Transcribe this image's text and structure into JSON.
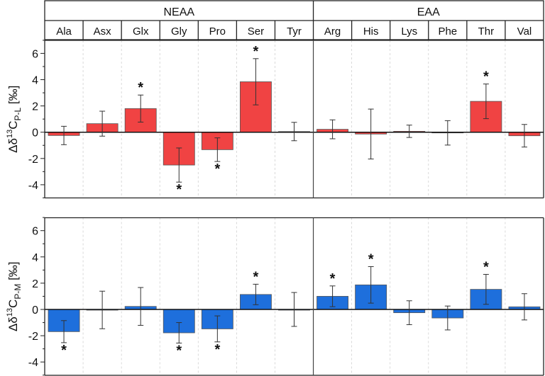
{
  "chart_data": [
    {
      "type": "bar",
      "panel": "top",
      "group_labels": [
        "NEAA",
        "EAA"
      ],
      "group_sizes": [
        7,
        6
      ],
      "categories": [
        "Ala",
        "Asx",
        "Glx",
        "Gly",
        "Pro",
        "Ser",
        "Tyr",
        "Arg",
        "His",
        "Lys",
        "Phe",
        "Thr",
        "Val"
      ],
      "values": [
        -0.25,
        0.65,
        1.8,
        -2.5,
        -1.33,
        3.84,
        0.05,
        0.22,
        -0.14,
        0.07,
        -0.05,
        2.35,
        -0.27
      ],
      "errors": [
        0.7,
        0.95,
        1.03,
        1.3,
        0.9,
        1.76,
        0.7,
        0.72,
        1.9,
        0.47,
        0.93,
        1.32,
        0.86
      ],
      "significant": [
        false,
        false,
        true,
        true,
        true,
        true,
        false,
        false,
        false,
        false,
        false,
        true,
        false
      ],
      "significance_mark": "*",
      "ylabel_main": "Δδ",
      "ylabel_sup": "13",
      "ylabel_c": "C",
      "ylabel_sub": "P-L",
      "ylabel_unit": " [‰]",
      "ylim": [
        -5,
        7
      ],
      "yticks": [
        -4,
        -2,
        0,
        2,
        4,
        6
      ],
      "color": "#f04343"
    },
    {
      "type": "bar",
      "panel": "bottom",
      "categories": [
        "Ala",
        "Asx",
        "Glx",
        "Gly",
        "Pro",
        "Ser",
        "Tyr",
        "Arg",
        "His",
        "Lys",
        "Phe",
        "Thr",
        "Val"
      ],
      "values": [
        -1.69,
        -0.04,
        0.23,
        -1.78,
        -1.48,
        1.14,
        0.0,
        1.0,
        1.87,
        -0.25,
        -0.65,
        1.53,
        0.2
      ],
      "errors": [
        0.84,
        1.43,
        1.44,
        0.78,
        0.99,
        0.78,
        1.29,
        0.79,
        1.39,
        0.91,
        0.91,
        1.14,
        1.0
      ],
      "significant": [
        true,
        false,
        false,
        true,
        true,
        true,
        false,
        true,
        true,
        false,
        false,
        true,
        false
      ],
      "significance_mark": "*",
      "ylabel_main": "Δδ",
      "ylabel_sup": "13",
      "ylabel_c": "C",
      "ylabel_sub": "P-M",
      "ylabel_unit": " [‰]",
      "ylim": [
        -5,
        7
      ],
      "yticks": [
        -4,
        -2,
        0,
        2,
        4,
        6
      ],
      "color": "#1e6fdc"
    }
  ]
}
